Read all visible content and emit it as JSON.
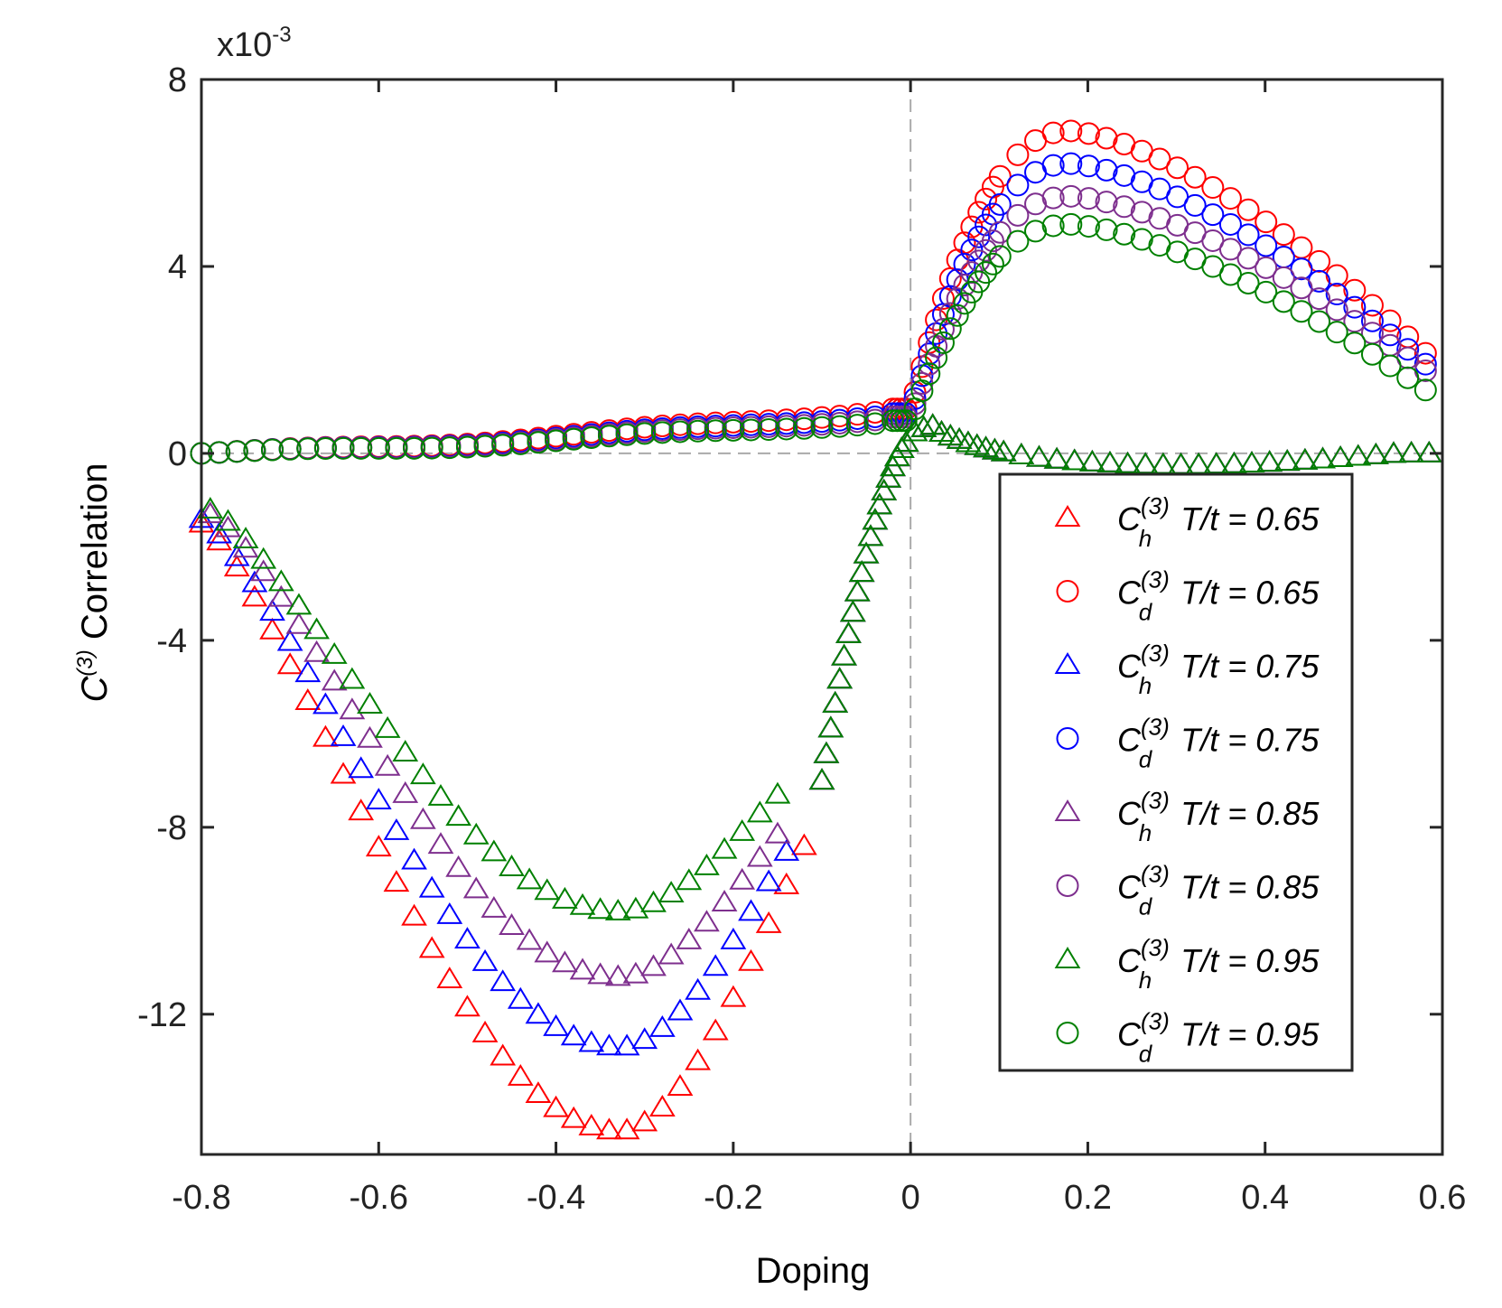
{
  "chart_data": {
    "type": "scatter",
    "xlabel": "Doping",
    "ylabel": {
      "base": "C",
      "sup": "(3)",
      "rest": " Correlation"
    },
    "y_multiplier": "x10",
    "y_multiplier_exp": "-3",
    "xlim": [
      -0.8,
      0.6
    ],
    "ylim": [
      -15,
      8
    ],
    "x_ticks": [
      -0.8,
      -0.6,
      -0.4,
      -0.2,
      0,
      0.2,
      0.4,
      0.6
    ],
    "x_tick_labels": [
      "-0.8",
      "-0.6",
      "-0.4",
      "-0.2",
      "0",
      "0.2",
      "0.4",
      "0.6"
    ],
    "y_ticks": [
      -12,
      -8,
      -4,
      0,
      4,
      8
    ],
    "y_tick_labels": [
      "-12",
      "-8",
      "-4",
      "0",
      "4",
      "8"
    ],
    "reference_lines": [
      {
        "axis": "x",
        "value": 0,
        "style": "dashed"
      },
      {
        "axis": "y",
        "value": 0,
        "style": "dashed"
      }
    ],
    "legend_position": "lower-right",
    "grid": false,
    "series": [
      {
        "label_main": "C",
        "label_sub": "h",
        "label_sup": "(3)",
        "label_rest": " T/t = 0.65",
        "marker": "triangle",
        "color": "#ff0000",
        "temperature": 0.65,
        "channel": "h",
        "x_neg_start": -0.8,
        "x_neg_step": 0.02,
        "min_x": -0.327,
        "min_y": -14.5,
        "left_y": -1.5,
        "right_y": -8.4,
        "right_x": -0.12
      },
      {
        "label_main": "C",
        "label_sub": "d",
        "label_sup": "(3)",
        "label_rest": " T/t = 0.65",
        "marker": "circle",
        "color": "#ff0000",
        "temperature": 0.65,
        "channel": "d",
        "peak_x": 0.18,
        "peak_y": 6.9,
        "end_y": 1.8,
        "plateau_y": 0.95
      },
      {
        "label_main": "C",
        "label_sub": "h",
        "label_sup": "(3)",
        "label_rest": " T/t = 0.75",
        "marker": "triangle",
        "color": "#0000ff",
        "temperature": 0.75,
        "channel": "h",
        "x_neg_start": -0.8,
        "x_neg_step": 0.02,
        "min_x": -0.327,
        "min_y": -12.7,
        "left_y": -1.4,
        "right_y": -8.2,
        "right_x": -0.13
      },
      {
        "label_main": "C",
        "label_sub": "d",
        "label_sup": "(3)",
        "label_rest": " T/t = 0.75",
        "marker": "circle",
        "color": "#0000ff",
        "temperature": 0.75,
        "channel": "d",
        "peak_x": 0.18,
        "peak_y": 6.2,
        "end_y": 1.6,
        "plateau_y": 0.85
      },
      {
        "label_main": "C",
        "label_sub": "h",
        "label_sup": "(3)",
        "label_rest": " T/t = 0.85",
        "marker": "triangle",
        "color": "#7e2f8e",
        "temperature": 0.85,
        "channel": "h",
        "x_neg_start": -0.79,
        "x_neg_step": 0.02,
        "min_x": -0.327,
        "min_y": -11.2,
        "left_y": -1.3,
        "right_y": -7.9,
        "right_x": -0.14
      },
      {
        "label_main": "C",
        "label_sub": "d",
        "label_sup": "(3)",
        "label_rest": " T/t = 0.85",
        "marker": "circle",
        "color": "#7e2f8e",
        "temperature": 0.85,
        "channel": "d",
        "peak_x": 0.18,
        "peak_y": 5.5,
        "end_y": 1.5,
        "plateau_y": 0.78
      },
      {
        "label_main": "C",
        "label_sub": "h",
        "label_sup": "(3)",
        "label_rest": " T/t = 0.95",
        "marker": "triangle",
        "color": "#008000",
        "temperature": 0.95,
        "channel": "h",
        "x_neg_start": -0.79,
        "x_neg_step": 0.02,
        "min_x": -0.327,
        "min_y": -9.8,
        "left_y": -1.2,
        "right_y": -7.3,
        "right_x": -0.15
      },
      {
        "label_main": "C",
        "label_sub": "d",
        "label_sup": "(3)",
        "label_rest": " T/t = 0.95",
        "marker": "circle",
        "color": "#008000",
        "temperature": 0.95,
        "channel": "d",
        "peak_x": 0.18,
        "peak_y": 4.9,
        "end_y": 1.1,
        "plateau_y": 0.7
      }
    ]
  }
}
